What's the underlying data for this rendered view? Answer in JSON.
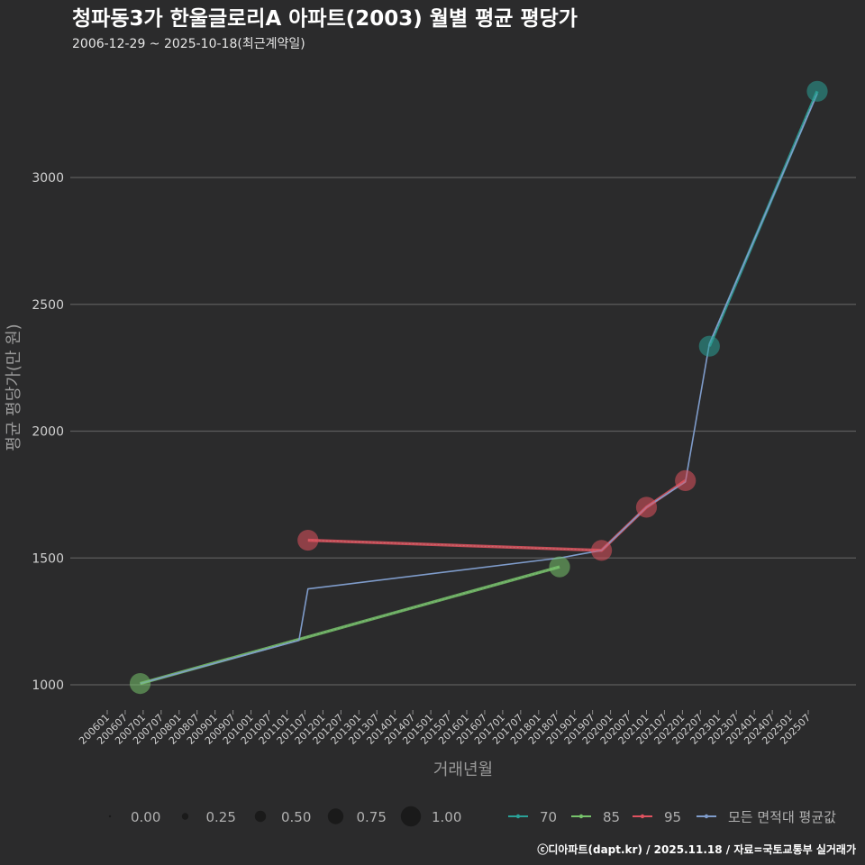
{
  "chart_data": {
    "type": "line",
    "title": "청파동3가 한울글로리A 아파트(2003) 월별 평균 평당가",
    "subtitle": "2006-12-29 ~ 2025-10-18(최근계약일)",
    "xlabel": "거래년월",
    "ylabel": "평균 평당가(만 원)",
    "ylim": [
      900,
      3400
    ],
    "yticks": [
      1000,
      1500,
      2000,
      2500,
      3000
    ],
    "grid": true,
    "x_domain": [
      "2006-01",
      "2025-10"
    ],
    "categories": [
      "200601",
      "200607",
      "200701",
      "200707",
      "200801",
      "200807",
      "200901",
      "200907",
      "201001",
      "201007",
      "201101",
      "201107",
      "201201",
      "201207",
      "201301",
      "201307",
      "201401",
      "201407",
      "201501",
      "201507",
      "201601",
      "201607",
      "201701",
      "201707",
      "201801",
      "201807",
      "201901",
      "201907",
      "202001",
      "202007",
      "202101",
      "202107",
      "202201",
      "202207",
      "202301",
      "202307",
      "202401",
      "202407",
      "202501",
      "202507"
    ],
    "series": [
      {
        "name": "70",
        "color": "#2aa198",
        "points": [
          {
            "x": "2022-10",
            "y": 2335,
            "size": 0.7
          },
          {
            "x": "2025-10",
            "y": 3340,
            "size": 0.7
          }
        ]
      },
      {
        "name": "85",
        "color": "#77c36b",
        "points": [
          {
            "x": "2006-12",
            "y": 1005,
            "size": 0.7
          },
          {
            "x": "2018-08",
            "y": 1465,
            "size": 0.7
          }
        ]
      },
      {
        "name": "95",
        "color": "#e0525f",
        "points": [
          {
            "x": "2011-08",
            "y": 1570,
            "size": 0.7
          },
          {
            "x": "2019-10",
            "y": 1530,
            "size": 0.7
          },
          {
            "x": "2021-01",
            "y": 1700,
            "size": 0.7
          },
          {
            "x": "2022-02",
            "y": 1805,
            "size": 0.7
          }
        ]
      },
      {
        "name": "모든 면적대 평균값",
        "color": "#7f9ccb",
        "points": [
          {
            "x": "2006-12",
            "y": 1005
          },
          {
            "x": "2011-05",
            "y": 1175
          },
          {
            "x": "2011-08",
            "y": 1378
          },
          {
            "x": "2018-08",
            "y": 1500
          },
          {
            "x": "2019-10",
            "y": 1530
          },
          {
            "x": "2021-01",
            "y": 1700
          },
          {
            "x": "2022-02",
            "y": 1800
          },
          {
            "x": "2022-10",
            "y": 2345
          },
          {
            "x": "2025-10",
            "y": 3330
          }
        ]
      }
    ],
    "size_legend": {
      "values": [
        0.0,
        0.25,
        0.5,
        0.75,
        1.0
      ],
      "labels": [
        "0.00",
        "0.25",
        "0.50",
        "0.75",
        "1.00"
      ]
    },
    "legend_position": "bottom"
  },
  "footer": "ⓒ디아파트(dapt.kr) / 2025.11.18 / 자료=국토교통부 실거래가"
}
